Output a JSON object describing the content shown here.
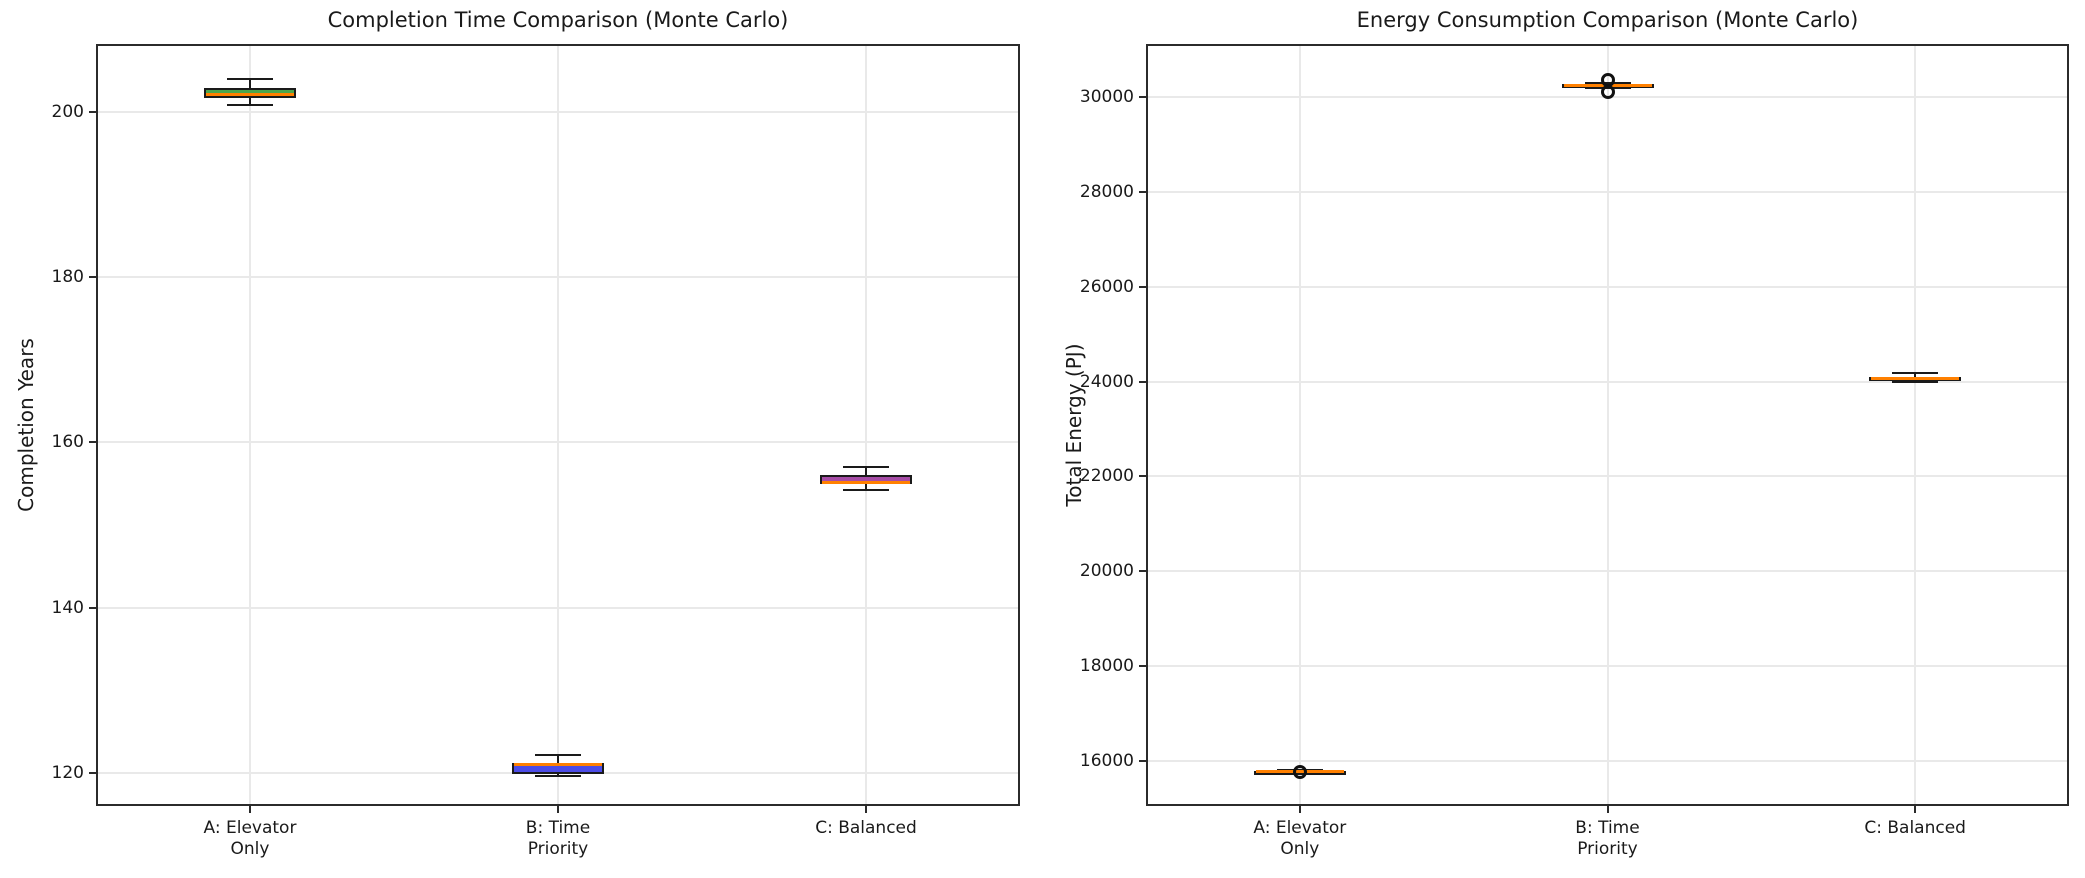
{
  "figure": {
    "background": "#ffffff",
    "text_color": "#1a1a1a",
    "grid_color": "#e9e9e9",
    "spine_color": "#2b2b2b"
  },
  "chart_data": [
    {
      "type": "box",
      "title": "Completion Time Comparison (Monte Carlo)",
      "ylabel": "Completion Years",
      "xlabel": "",
      "categories": [
        "A: Elevator\nOnly",
        "B: Time\nPriority",
        "C: Balanced"
      ],
      "yticks": [
        120,
        140,
        160,
        180,
        200
      ],
      "ylim": [
        116.0,
        208.2
      ],
      "grid": true,
      "legend": "none",
      "median_color": "#FF8000",
      "boxes": [
        {
          "category": "A: Elevator Only",
          "whislo": 200.8,
          "q1": 201.7,
          "med": 202.1,
          "q3": 202.9,
          "whishi": 204.0,
          "fliers": [],
          "facecolor": "#4CA64C"
        },
        {
          "category": "B: Time Priority",
          "whislo": 119.6,
          "q1": 119.9,
          "med": 121.0,
          "q3": 121.2,
          "whishi": 122.2,
          "fliers": [],
          "facecolor": "#4C4CE6"
        },
        {
          "category": "C: Balanced",
          "whislo": 154.2,
          "q1": 155.0,
          "med": 155.2,
          "q3": 156.1,
          "whishi": 157.0,
          "fliers": [],
          "facecolor": "#A64CA6"
        }
      ]
    },
    {
      "type": "box",
      "title": "Energy Consumption Comparison (Monte Carlo)",
      "ylabel": "Total Energy (PJ)",
      "xlabel": "",
      "categories": [
        "A: Elevator\nOnly",
        "B: Time\nPriority",
        "C: Balanced"
      ],
      "yticks": [
        16000,
        18000,
        20000,
        22000,
        24000,
        26000,
        28000,
        30000
      ],
      "ylim": [
        15050,
        31120
      ],
      "grid": true,
      "legend": "none",
      "median_color": "#FF8000",
      "boxes": [
        {
          "category": "A: Elevator Only",
          "whislo": 15740,
          "q1": 15755,
          "med": 15770,
          "q3": 15785,
          "whishi": 15800,
          "fliers": [
            15770
          ],
          "facecolor": "#4CA64C"
        },
        {
          "category": "B: Time Priority",
          "whislo": 30200,
          "q1": 30225,
          "med": 30250,
          "q3": 30275,
          "whishi": 30300,
          "fliers": [
            30370,
            30100
          ],
          "facecolor": "#4C4CE6"
        },
        {
          "category": "C: Balanced",
          "whislo": 23990,
          "q1": 24030,
          "med": 24060,
          "q3": 24090,
          "whishi": 24175,
          "fliers": [],
          "facecolor": "#A64CA6"
        }
      ]
    }
  ]
}
